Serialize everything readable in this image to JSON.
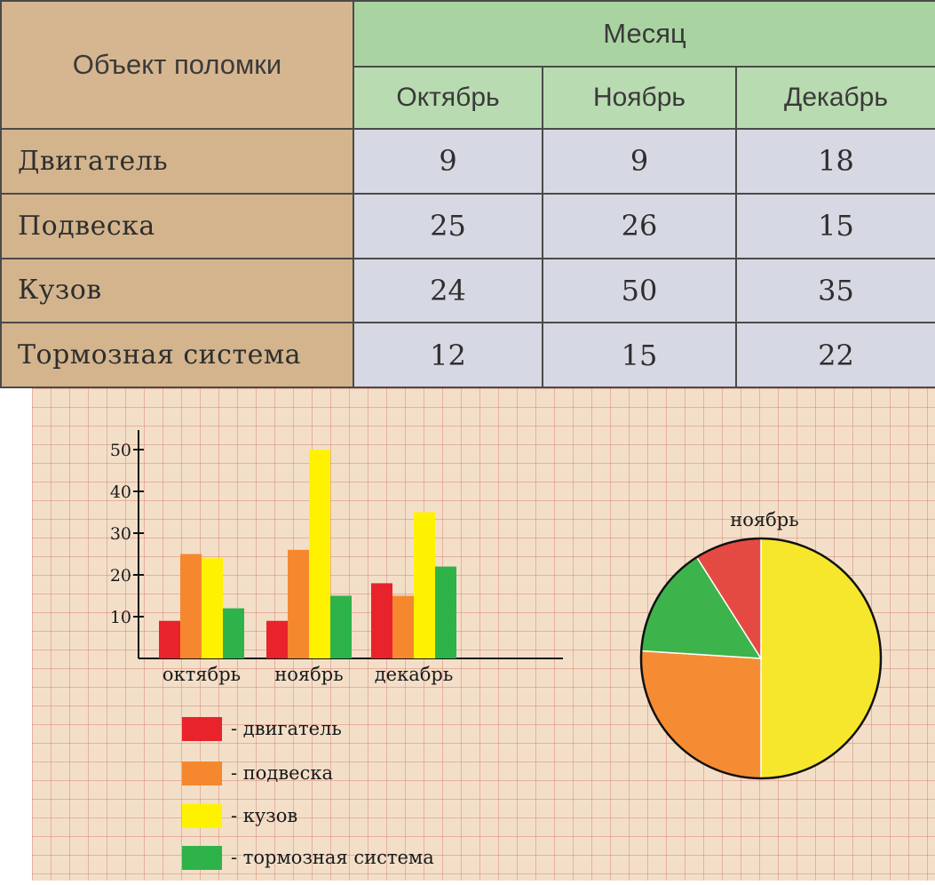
{
  "table": {
    "object_header": "Объект поломки",
    "month_header": "Месяц",
    "columns": [
      "Октябрь",
      "Ноябрь",
      "Декабрь"
    ],
    "rows": [
      {
        "label": "Двигатель",
        "values": [
          9,
          9,
          18
        ]
      },
      {
        "label": "Подвеска",
        "values": [
          25,
          26,
          15
        ]
      },
      {
        "label": "Кузов",
        "values": [
          24,
          50,
          35
        ]
      },
      {
        "label": "Тормозная система",
        "values": [
          12,
          15,
          22
        ]
      }
    ]
  },
  "chart_data": [
    {
      "type": "bar",
      "categories": [
        "октябрь",
        "ноябрь",
        "декабрь"
      ],
      "series": [
        {
          "name": "двигатель",
          "values": [
            9,
            9,
            18
          ],
          "color": "#e8232b"
        },
        {
          "name": "подвеска",
          "values": [
            25,
            26,
            15
          ],
          "color": "#f5882e"
        },
        {
          "name": "кузов",
          "values": [
            24,
            50,
            35
          ],
          "color": "#fff200"
        },
        {
          "name": "тормозная система",
          "values": [
            12,
            15,
            22
          ],
          "color": "#2db34a"
        }
      ],
      "yticks": [
        10,
        20,
        30,
        40,
        50
      ],
      "ylim": [
        0,
        55
      ],
      "grid": false,
      "legend_labels": [
        "- двигатель",
        "- подвеска",
        "- кузов",
        "- тормозная система"
      ],
      "legend_position": "bottom"
    },
    {
      "type": "pie",
      "title": "ноябрь",
      "labels": [
        "двигатель",
        "подвеска",
        "кузов",
        "тормозная система"
      ],
      "values": [
        9,
        26,
        50,
        15
      ],
      "colors": [
        "#e54a42",
        "#f58b33",
        "#f6e72c",
        "#3cb44b"
      ]
    }
  ]
}
